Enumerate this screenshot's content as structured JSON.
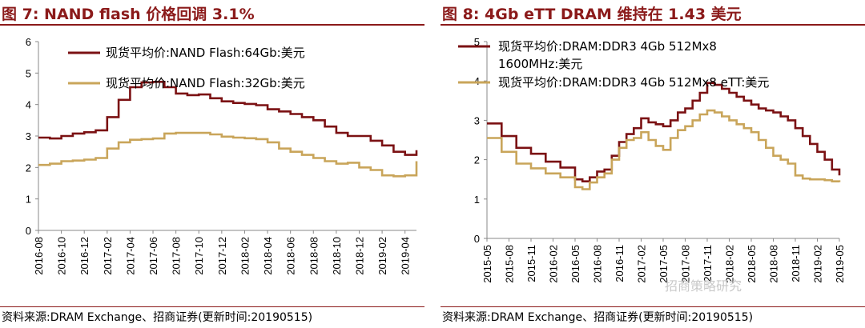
{
  "figures": [
    {
      "title": "图 7:  NAND flash 价格回调 3.1%",
      "source": "资料来源:DRAM Exchange、招商证券(更新时间:20190515)"
    },
    {
      "title": "图 8:  4Gb eTT DRAM 维持在 1.43 美元",
      "source": "资料来源:DRAM Exchange、招商证券(更新时间:20190515)"
    }
  ],
  "watermark": "招商策略研究",
  "colors": {
    "dark_red": "#7b1113",
    "gold": "#c9a55a",
    "accent": "#8b1a1a"
  },
  "chart_data": [
    {
      "type": "line",
      "title": "",
      "x_tick_labels": [
        "2016-08",
        "2016-10",
        "2016-12",
        "2017-02",
        "2017-04",
        "2017-06",
        "2017-08",
        "2017-10",
        "2017-12",
        "2018-02",
        "2018-04",
        "2018-06",
        "2018-08",
        "2018-10",
        "2018-12",
        "2019-02",
        "2019-04"
      ],
      "x_range": [
        "2016-08",
        "2019-05"
      ],
      "ylim": [
        0,
        6
      ],
      "y_ticks": [
        0,
        1,
        2,
        3,
        4,
        5,
        6
      ],
      "grid": false,
      "legend_position": "top-left",
      "series": [
        {
          "name": "现货平均价:NAND Flash:64Gb:美元",
          "color": "#7b1113",
          "x": [
            "2016-08",
            "2016-09",
            "2016-10",
            "2016-11",
            "2016-12",
            "2017-01",
            "2017-02",
            "2017-03",
            "2017-04",
            "2017-05",
            "2017-06",
            "2017-07",
            "2017-08",
            "2017-09",
            "2017-10",
            "2017-11",
            "2017-12",
            "2018-01",
            "2018-02",
            "2018-03",
            "2018-04",
            "2018-05",
            "2018-06",
            "2018-07",
            "2018-08",
            "2018-09",
            "2018-10",
            "2018-11",
            "2018-12",
            "2019-01",
            "2019-02",
            "2019-03",
            "2019-04",
            "2019-05"
          ],
          "values": [
            2.95,
            2.92,
            3.0,
            3.08,
            3.12,
            3.18,
            3.6,
            4.15,
            4.55,
            4.7,
            4.72,
            4.55,
            4.35,
            4.3,
            4.32,
            4.2,
            4.1,
            4.05,
            4.02,
            3.98,
            3.85,
            3.78,
            3.7,
            3.6,
            3.5,
            3.3,
            3.1,
            3.0,
            3.0,
            2.85,
            2.7,
            2.5,
            2.4,
            2.55
          ]
        },
        {
          "name": "现货平均价:NAND Flash:32Gb:美元",
          "color": "#c9a55a",
          "x": [
            "2016-08",
            "2016-09",
            "2016-10",
            "2016-11",
            "2016-12",
            "2017-01",
            "2017-02",
            "2017-03",
            "2017-04",
            "2017-05",
            "2017-06",
            "2017-07",
            "2017-08",
            "2017-09",
            "2017-10",
            "2017-11",
            "2017-12",
            "2018-01",
            "2018-02",
            "2018-03",
            "2018-04",
            "2018-05",
            "2018-06",
            "2018-07",
            "2018-08",
            "2018-09",
            "2018-10",
            "2018-11",
            "2018-12",
            "2019-01",
            "2019-02",
            "2019-03",
            "2019-04",
            "2019-05"
          ],
          "values": [
            2.08,
            2.12,
            2.2,
            2.22,
            2.25,
            2.3,
            2.6,
            2.8,
            2.88,
            2.9,
            2.92,
            3.08,
            3.1,
            3.1,
            3.1,
            3.05,
            2.98,
            2.95,
            2.93,
            2.9,
            2.8,
            2.6,
            2.5,
            2.4,
            2.3,
            2.2,
            2.12,
            2.15,
            2.0,
            1.92,
            1.75,
            1.72,
            1.75,
            2.2
          ]
        }
      ]
    },
    {
      "type": "line",
      "title": "",
      "x_tick_labels": [
        "2015-05",
        "2015-08",
        "2015-11",
        "2016-02",
        "2016-05",
        "2016-08",
        "2016-11",
        "2017-02",
        "2017-05",
        "2017-08",
        "2017-11",
        "2018-02",
        "2018-05",
        "2018-08",
        "2018-11",
        "2019-02",
        "2019-05"
      ],
      "x_range": [
        "2015-05",
        "2019-05"
      ],
      "ylim": [
        0,
        5
      ],
      "y_ticks": [
        0,
        1,
        2,
        3,
        4,
        5
      ],
      "grid": false,
      "legend_position": "top-left",
      "series": [
        {
          "name": "现货平均价:DRAM:DDR3 4Gb 512Mx8 1600MHz:美元",
          "legend_lines": [
            "现货平均价:DRAM:DDR3 4Gb 512Mx8",
            "1600MHz:美元"
          ],
          "color": "#7b1113",
          "x": [
            "2015-05",
            "2015-07",
            "2015-09",
            "2015-11",
            "2016-01",
            "2016-03",
            "2016-05",
            "2016-06",
            "2016-07",
            "2016-08",
            "2016-09",
            "2016-10",
            "2016-11",
            "2016-12",
            "2017-01",
            "2017-02",
            "2017-03",
            "2017-04",
            "2017-05",
            "2017-06",
            "2017-07",
            "2017-08",
            "2017-09",
            "2017-10",
            "2017-11",
            "2017-12",
            "2018-01",
            "2018-02",
            "2018-03",
            "2018-04",
            "2018-05",
            "2018-06",
            "2018-07",
            "2018-08",
            "2018-09",
            "2018-10",
            "2018-11",
            "2018-12",
            "2019-01",
            "2019-02",
            "2019-03",
            "2019-04",
            "2019-05"
          ],
          "values": [
            2.92,
            2.6,
            2.3,
            2.15,
            1.95,
            1.8,
            1.5,
            1.45,
            1.55,
            1.7,
            1.75,
            2.1,
            2.45,
            2.65,
            2.8,
            3.05,
            2.95,
            2.9,
            2.85,
            3.0,
            3.2,
            3.3,
            3.5,
            3.7,
            3.95,
            3.9,
            3.8,
            3.7,
            3.6,
            3.5,
            3.4,
            3.3,
            3.25,
            3.2,
            3.1,
            3.0,
            2.8,
            2.6,
            2.4,
            2.2,
            2.0,
            1.75,
            1.6
          ]
        },
        {
          "name": "现货平均价:DRAM:DDR3 4Gb 512Mx8 eTT:美元",
          "legend_lines": [
            "现货平均价:DRAM:DDR3 4Gb 512Mx8 eTT:美元"
          ],
          "color": "#c9a55a",
          "x": [
            "2015-05",
            "2015-07",
            "2015-09",
            "2015-11",
            "2016-01",
            "2016-03",
            "2016-05",
            "2016-06",
            "2016-07",
            "2016-08",
            "2016-09",
            "2016-10",
            "2016-11",
            "2016-12",
            "2017-01",
            "2017-02",
            "2017-03",
            "2017-04",
            "2017-05",
            "2017-06",
            "2017-07",
            "2017-08",
            "2017-09",
            "2017-10",
            "2017-11",
            "2017-12",
            "2018-01",
            "2018-02",
            "2018-03",
            "2018-04",
            "2018-05",
            "2018-06",
            "2018-07",
            "2018-08",
            "2018-09",
            "2018-10",
            "2018-11",
            "2018-12",
            "2019-01",
            "2019-02",
            "2019-03",
            "2019-04",
            "2019-05"
          ],
          "values": [
            2.55,
            2.2,
            1.9,
            1.78,
            1.65,
            1.55,
            1.3,
            1.25,
            1.42,
            1.55,
            1.65,
            2.0,
            2.3,
            2.5,
            2.55,
            2.7,
            2.5,
            2.35,
            2.25,
            2.55,
            2.75,
            2.85,
            3.0,
            3.15,
            3.25,
            3.2,
            3.1,
            3.0,
            2.9,
            2.8,
            2.7,
            2.5,
            2.3,
            2.1,
            2.0,
            1.9,
            1.6,
            1.52,
            1.5,
            1.5,
            1.48,
            1.45,
            1.43
          ]
        }
      ]
    }
  ]
}
